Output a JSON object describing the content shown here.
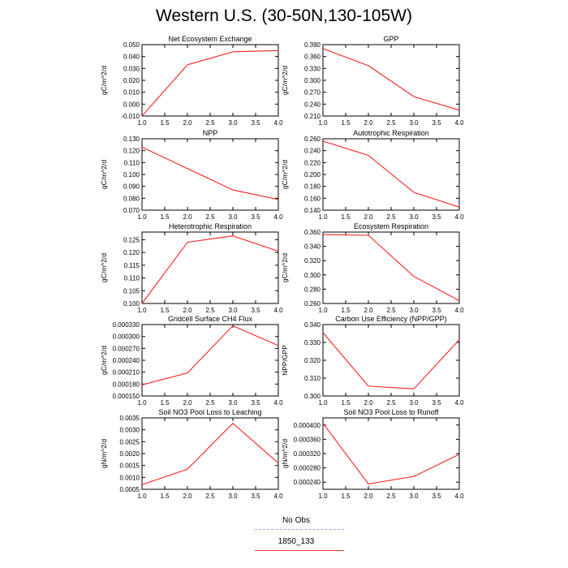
{
  "title": "Western U.S. (30-50N,130-105W)",
  "legend": {
    "entries": [
      {
        "label": "No Obs",
        "style": "dashed",
        "color": "#9c9cf5"
      },
      {
        "label": "1850_133",
        "style": "solid",
        "color": "#ff3b3b"
      }
    ]
  },
  "colors": {
    "series": "#ff2020",
    "axis": "#000000"
  },
  "chart_data": [
    {
      "type": "line",
      "title": "Net Ecosystem Exchange",
      "ylabel": "gC/m^2/d",
      "xlim": [
        1.0,
        4.0
      ],
      "xticks": [
        "1.0",
        "1.5",
        "2.0",
        "2.5",
        "3.0",
        "3.5",
        "4.0"
      ],
      "ylim": [
        -0.01,
        0.05
      ],
      "yticks": [
        "-0.010",
        "0.000",
        "0.010",
        "0.020",
        "0.030",
        "0.040",
        "0.050"
      ],
      "series": [
        {
          "x": [
            1.0,
            2.0,
            3.0,
            4.0
          ],
          "y": [
            -0.01,
            0.033,
            0.044,
            0.045
          ]
        }
      ]
    },
    {
      "type": "line",
      "title": "GPP",
      "ylabel": "gC/m^2/d",
      "xlim": [
        1.0,
        4.0
      ],
      "xticks": [
        "1.0",
        "1.5",
        "2.0",
        "2.5",
        "3.0",
        "3.5",
        "4.0"
      ],
      "ylim": [
        0.21,
        0.39
      ],
      "yticks": [
        "0.210",
        "0.240",
        "0.270",
        "0.300",
        "0.330",
        "0.360",
        "0.390"
      ],
      "series": [
        {
          "x": [
            1.0,
            2.0,
            3.0,
            4.0
          ],
          "y": [
            0.38,
            0.337,
            0.259,
            0.225
          ]
        }
      ]
    },
    {
      "type": "line",
      "title": "NPP",
      "ylabel": "gC/m^2/d",
      "xlim": [
        1.0,
        4.0
      ],
      "xticks": [
        "1.0",
        "1.5",
        "2.0",
        "2.5",
        "3.0",
        "3.5",
        "4.0"
      ],
      "ylim": [
        0.07,
        0.13
      ],
      "yticks": [
        "0.070",
        "0.080",
        "0.090",
        "0.100",
        "0.110",
        "0.120",
        "0.130"
      ],
      "series": [
        {
          "x": [
            1.0,
            2.0,
            3.0,
            4.0
          ],
          "y": [
            0.123,
            0.105,
            0.087,
            0.079
          ]
        }
      ]
    },
    {
      "type": "line",
      "title": "Autotrophic Respiration",
      "ylabel": "gC/m^2/d",
      "xlim": [
        1.0,
        4.0
      ],
      "xticks": [
        "1.0",
        "1.5",
        "2.0",
        "2.5",
        "3.0",
        "3.5",
        "4.0"
      ],
      "ylim": [
        0.14,
        0.26
      ],
      "yticks": [
        "0.140",
        "0.160",
        "0.180",
        "0.200",
        "0.220",
        "0.240",
        "0.260"
      ],
      "series": [
        {
          "x": [
            1.0,
            2.0,
            3.0,
            4.0
          ],
          "y": [
            0.256,
            0.232,
            0.17,
            0.145
          ]
        }
      ]
    },
    {
      "type": "line",
      "title": "Heterotrophic Respiration",
      "ylabel": "gC/m^2/d",
      "xlim": [
        1.0,
        4.0
      ],
      "xticks": [
        "1.0",
        "1.5",
        "2.0",
        "2.5",
        "3.0",
        "3.5",
        "4.0"
      ],
      "ylim": [
        0.1,
        0.128
      ],
      "yticks": [
        "0.100",
        "0.105",
        "0.110",
        "0.115",
        "0.120",
        "0.125"
      ],
      "series": [
        {
          "x": [
            1.0,
            2.0,
            3.0,
            4.0
          ],
          "y": [
            0.1,
            0.124,
            0.1265,
            0.1205
          ]
        }
      ]
    },
    {
      "type": "line",
      "title": "Ecosystem Respiration",
      "ylabel": "gC/m^2/d",
      "xlim": [
        1.0,
        4.0
      ],
      "xticks": [
        "1.0",
        "1.5",
        "2.0",
        "2.5",
        "3.0",
        "3.5",
        "4.0"
      ],
      "ylim": [
        0.26,
        0.36
      ],
      "yticks": [
        "0.260",
        "0.280",
        "0.300",
        "0.320",
        "0.340",
        "0.360"
      ],
      "series": [
        {
          "x": [
            1.0,
            2.0,
            3.0,
            4.0
          ],
          "y": [
            0.3565,
            0.3555,
            0.298,
            0.264
          ]
        }
      ]
    },
    {
      "type": "line",
      "title": "Gridcell Surface CH4 Flux",
      "ylabel": "gC/m^2/d",
      "xlim": [
        1.0,
        4.0
      ],
      "xticks": [
        "1.0",
        "1.5",
        "2.0",
        "2.5",
        "3.0",
        "3.5",
        "4.0"
      ],
      "ylim": [
        0.00015,
        0.00033
      ],
      "yticks": [
        "0.000150",
        "0.000180",
        "0.000210",
        "0.000240",
        "0.000270",
        "0.000300",
        "0.000330"
      ],
      "series": [
        {
          "x": [
            1.0,
            2.0,
            3.0,
            4.0
          ],
          "y": [
            0.000178,
            0.000208,
            0.000327,
            0.000277
          ]
        }
      ]
    },
    {
      "type": "line",
      "title": "Carbon Use Efficiency (NPP/GPP)",
      "ylabel": "NPP/GPP",
      "xlim": [
        1.0,
        4.0
      ],
      "xticks": [
        "1.0",
        "1.5",
        "2.0",
        "2.5",
        "3.0",
        "3.5",
        "4.0"
      ],
      "ylim": [
        0.3,
        0.34
      ],
      "yticks": [
        "0.300",
        "0.310",
        "0.320",
        "0.330",
        "0.340"
      ],
      "series": [
        {
          "x": [
            1.0,
            2.0,
            3.0,
            4.0
          ],
          "y": [
            0.3355,
            0.3055,
            0.304,
            0.3315
          ]
        }
      ]
    },
    {
      "type": "line",
      "title": "Soil NO3 Pool Loss to Leaching",
      "ylabel": "gN/m^2/d",
      "xlim": [
        1.0,
        4.0
      ],
      "xticks": [
        "1.0",
        "1.5",
        "2.0",
        "2.5",
        "3.0",
        "3.5",
        "4.0"
      ],
      "ylim": [
        0.0005,
        0.0035
      ],
      "yticks": [
        "0.0005",
        "0.0010",
        "0.0015",
        "0.0020",
        "0.0025",
        "0.0030",
        "0.0035"
      ],
      "series": [
        {
          "x": [
            1.0,
            2.0,
            3.0,
            4.0
          ],
          "y": [
            0.00069,
            0.00135,
            0.00327,
            0.0016
          ]
        }
      ]
    },
    {
      "type": "line",
      "title": "Soil NO3 Pool Loss to Runoff",
      "ylabel": "gN/m^2/d",
      "xlim": [
        1.0,
        4.0
      ],
      "xticks": [
        "1.0",
        "1.5",
        "2.0",
        "2.5",
        "3.0",
        "3.5",
        "4.0"
      ],
      "ylim": [
        0.00022,
        0.00042
      ],
      "yticks": [
        "0.000240",
        "0.000280",
        "0.000320",
        "0.000360",
        "0.000400"
      ],
      "series": [
        {
          "x": [
            1.0,
            2.0,
            3.0,
            4.0
          ],
          "y": [
            0.000405,
            0.000235,
            0.000256,
            0.000318
          ]
        }
      ]
    }
  ]
}
